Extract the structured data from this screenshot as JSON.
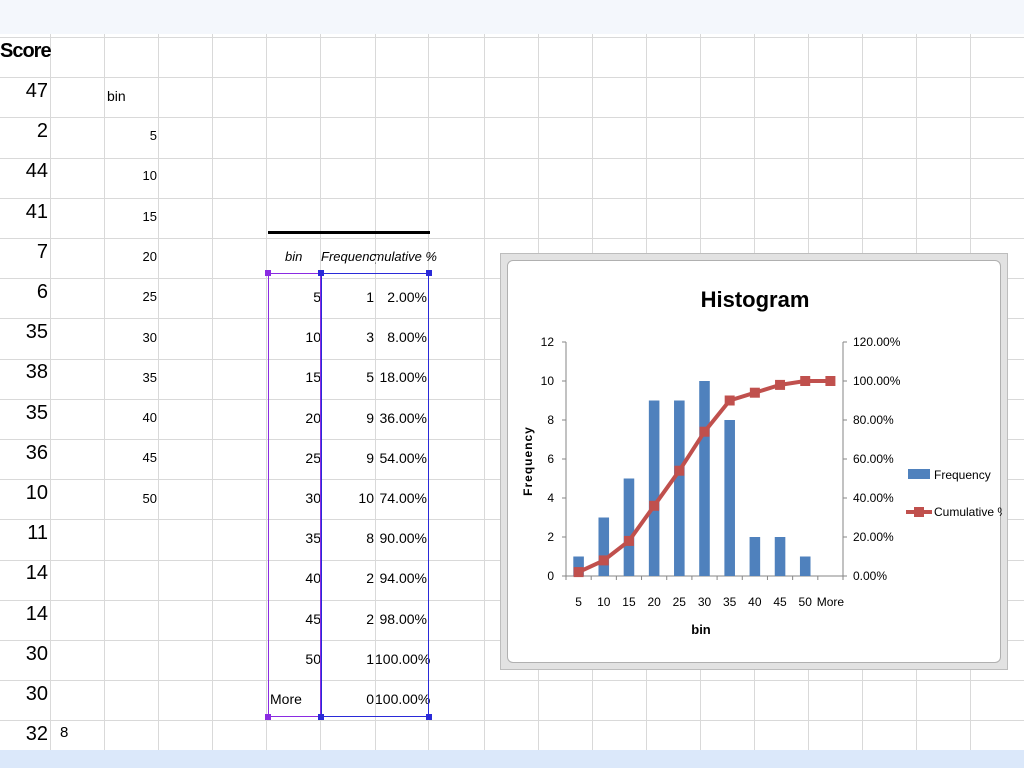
{
  "score_column": {
    "header": "Score",
    "values": [
      "47",
      "2",
      "44",
      "41",
      "7",
      "6",
      "35",
      "38",
      "35",
      "36",
      "10",
      "11",
      "14",
      "14",
      "30",
      "30",
      "32"
    ]
  },
  "bin_column": {
    "header": "bin",
    "values": [
      "5",
      "10",
      "15",
      "20",
      "25",
      "30",
      "35",
      "40",
      "45",
      "50"
    ]
  },
  "frequency_table": {
    "headers": [
      "bin",
      "Frequency",
      "Cumulative %"
    ],
    "rows": [
      [
        "5",
        "1",
        "2.00%"
      ],
      [
        "10",
        "3",
        "8.00%"
      ],
      [
        "15",
        "5",
        "18.00%"
      ],
      [
        "20",
        "9",
        "36.00%"
      ],
      [
        "25",
        "9",
        "54.00%"
      ],
      [
        "30",
        "10",
        "74.00%"
      ],
      [
        "35",
        "8",
        "90.00%"
      ],
      [
        "40",
        "2",
        "94.00%"
      ],
      [
        "45",
        "2",
        "98.00%"
      ],
      [
        "50",
        "1",
        "100.00%"
      ],
      [
        "More",
        "0",
        "100.00%"
      ]
    ]
  },
  "slide_number": "8",
  "chart_data": {
    "type": "bar",
    "title": "Histogram",
    "xlabel": "bin",
    "ylabel": "Frequency",
    "categories": [
      "5",
      "10",
      "15",
      "20",
      "25",
      "30",
      "35",
      "40",
      "45",
      "50",
      "More"
    ],
    "series": [
      {
        "name": "Frequency",
        "type": "bar",
        "axis": "left",
        "color": "#4f81bd",
        "values": [
          1,
          3,
          5,
          9,
          9,
          10,
          8,
          2,
          2,
          1,
          0
        ]
      },
      {
        "name": "Cumulative %",
        "type": "line",
        "axis": "right",
        "color": "#c0504d",
        "values": [
          2,
          8,
          18,
          36,
          54,
          74,
          90,
          94,
          98,
          100,
          100
        ]
      }
    ],
    "ylim": [
      0,
      12
    ],
    "yticks": [
      "0",
      "2",
      "4",
      "6",
      "8",
      "10",
      "12"
    ],
    "y2lim": [
      0,
      120
    ],
    "y2ticks": [
      "0.00%",
      "20.00%",
      "40.00%",
      "60.00%",
      "80.00%",
      "100.00%",
      "120.00%"
    ],
    "grid": false,
    "legend": "right"
  }
}
